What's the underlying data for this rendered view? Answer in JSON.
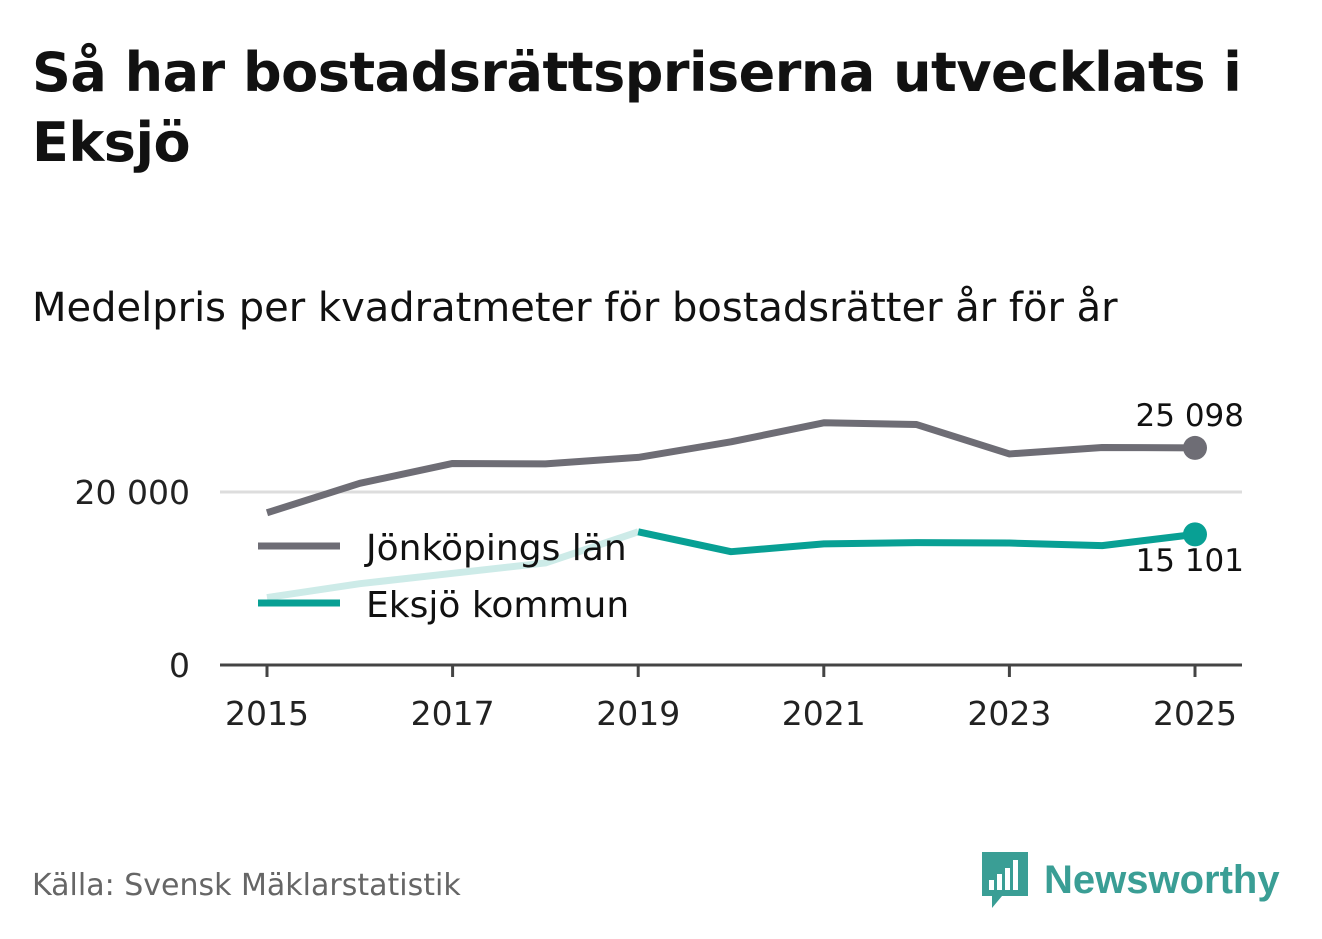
{
  "title": "Så har bostadsrättspriserna utvecklats i Eksjö",
  "subtitle": "Medelpris per kvadratmeter för bostadsrätter år för år",
  "source": "Källa: Svensk Mäklarstatistik",
  "brand": {
    "name": "Newsworthy",
    "color": "#3a9e95",
    "icon": "newsworthy-bar-chart-logo-icon"
  },
  "colors": {
    "county": "#6e6d75",
    "municipality": "#08a094",
    "municipality_faded": "#cdebe8",
    "grid": "#dddddd",
    "axis": "#444444"
  },
  "chart_data": {
    "type": "line",
    "x": [
      2015,
      2016,
      2017,
      2018,
      2019,
      2020,
      2021,
      2022,
      2023,
      2024,
      2025
    ],
    "x_ticks": [
      "2015",
      "2017",
      "2019",
      "2021",
      "2023",
      "2025"
    ],
    "y_ticks": [
      {
        "value": 0,
        "label": "0"
      },
      {
        "value": 20000,
        "label": "20 000"
      }
    ],
    "ylim": [
      0,
      30000
    ],
    "xlabel": "",
    "ylabel": "",
    "grid": true,
    "legend_position": "left-inside",
    "series": [
      {
        "name": "Jönköpings län",
        "color": "#6e6d75",
        "values": [
          17600,
          21000,
          23300,
          23250,
          24000,
          25800,
          28000,
          27800,
          24400,
          25150,
          25098
        ],
        "end_label": "25 098"
      },
      {
        "name": "Eksjö kommun",
        "color": "#08a094",
        "faded_color": "#cdebe8",
        "faded_until": 2019,
        "values": [
          7800,
          9400,
          10600,
          11800,
          15400,
          13100,
          14000,
          14150,
          14100,
          13800,
          15101
        ],
        "end_label": "15 101"
      }
    ]
  }
}
